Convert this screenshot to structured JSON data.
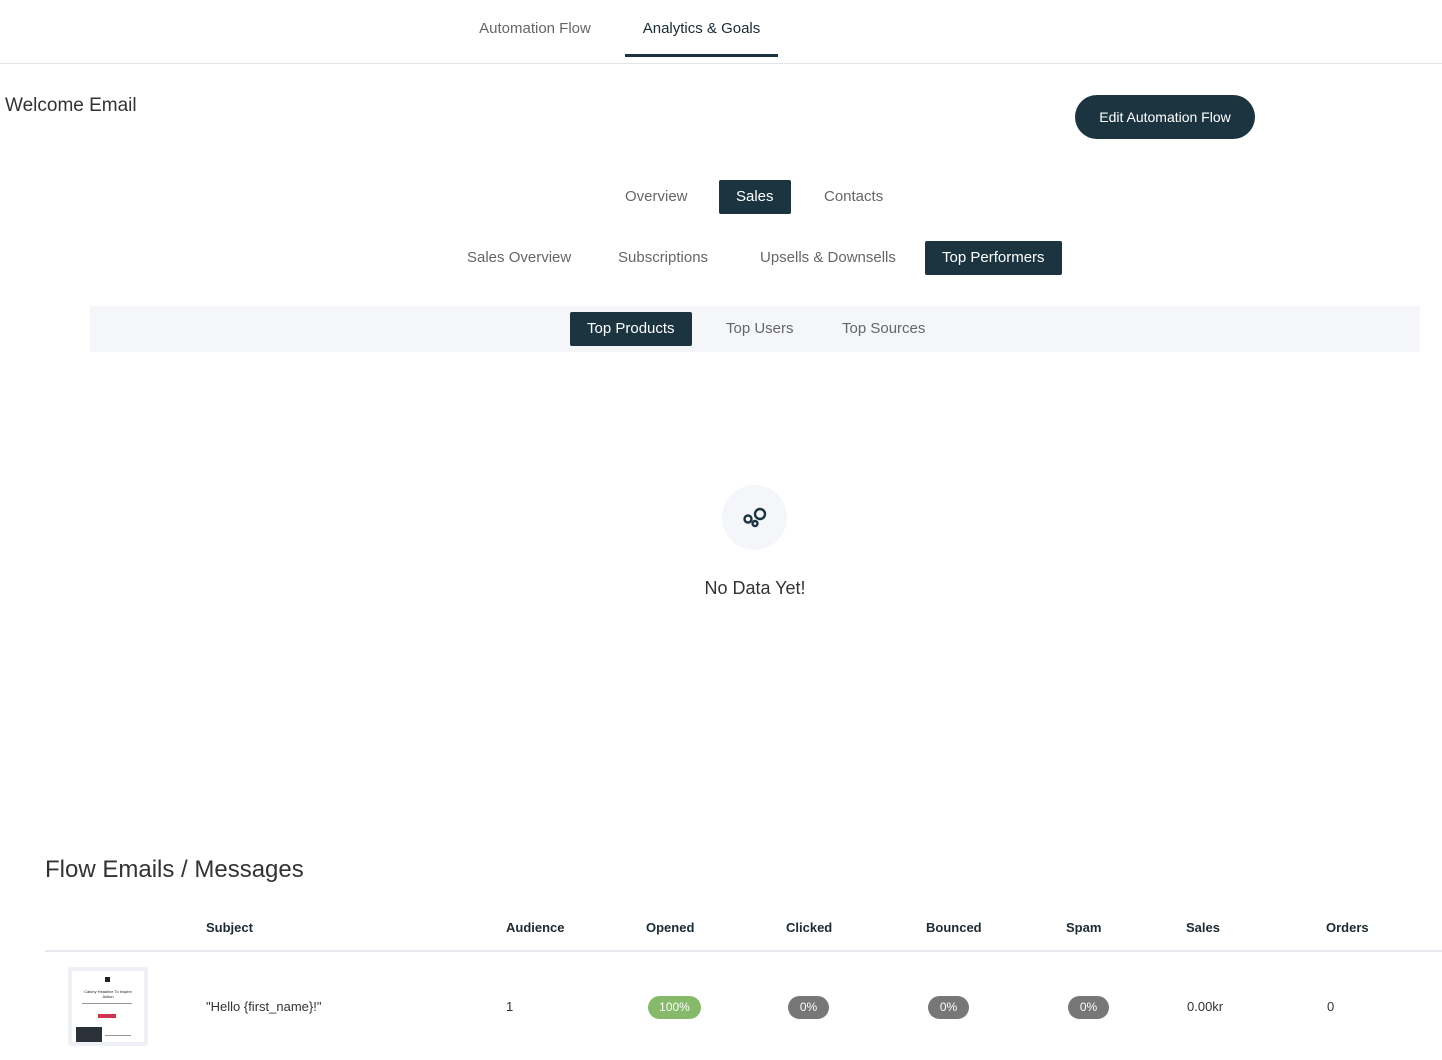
{
  "top_tabs": [
    {
      "label": "Automation Flow"
    },
    {
      "label": "Analytics & Goals"
    }
  ],
  "page_title": "Welcome Email",
  "edit_button": "Edit Automation Flow",
  "main_tabs": [
    {
      "label": "Overview"
    },
    {
      "label": "Sales"
    },
    {
      "label": "Contacts"
    }
  ],
  "sales_tabs": [
    {
      "label": "Sales Overview"
    },
    {
      "label": "Subscriptions"
    },
    {
      "label": "Upsells & Downsells"
    },
    {
      "label": "Top Performers"
    }
  ],
  "performer_tabs": [
    {
      "label": "Top Products"
    },
    {
      "label": "Top Users"
    },
    {
      "label": "Top Sources"
    }
  ],
  "empty_state": {
    "icon": "bubbles-icon",
    "text": "No Data Yet!"
  },
  "flow_section": {
    "title": "Flow Emails / Messages",
    "columns": [
      "Subject",
      "Audience",
      "Opened",
      "Clicked",
      "Bounced",
      "Spam",
      "Sales",
      "Orders"
    ],
    "rows": [
      {
        "thumbnail_text": "Catchy Headline To Inspire Action",
        "subject": "\"Hello {first_name}!\"",
        "audience": "1",
        "opened": "100%",
        "clicked": "0%",
        "bounced": "0%",
        "spam": "0%",
        "sales": "0.00kr",
        "orders": "0"
      }
    ]
  },
  "colors": {
    "primary": "#1b3440",
    "success": "#86b96a",
    "neutral": "#777777"
  }
}
